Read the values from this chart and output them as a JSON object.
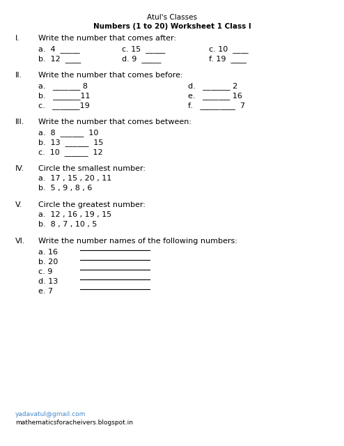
{
  "title": "Atul's Classes",
  "subtitle": "Numbers (1 to 20) Worksheet 1 Class I",
  "bg_color": "#ffffff",
  "text_color": "#000000",
  "link_color": "#4488cc",
  "footer_link": "yadavatul@gmail.com",
  "footer_text": "mathematicsforacheivers.blogspot.in",
  "section_I_roman": "I.",
  "section_I_instr": "Write the number that comes after:",
  "section_I_row1_col1": "a.  4  _____",
  "section_I_row1_col2": "c. 15  _____",
  "section_I_row1_col3": "c. 10  ____",
  "section_I_row2_col1": "b.  12  ____",
  "section_I_row2_col2": "d. 9  _____",
  "section_I_row2_col3": "f. 19  ____",
  "section_II_roman": "II.",
  "section_II_instr": "Write the number that comes before:",
  "section_II_a": "a.   _______ 8",
  "section_II_b": "b.   _______11",
  "section_II_c": "c.   _______19",
  "section_II_d": "d.   _______ 2",
  "section_II_e": "e.   _______ 16",
  "section_II_f": "f.   _________  7",
  "section_III_roman": "III.",
  "section_III_instr": "Write the number that comes between:",
  "section_III_a": "a.  8  ______  10",
  "section_III_b": "b.  13  ______  15",
  "section_III_c": "c.  10  ______  12",
  "section_IV_roman": "IV.",
  "section_IV_instr": "Circle the smallest number:",
  "section_IV_a": "a.  17 , 15 , 20 , 11",
  "section_IV_b": "b.  5 , 9 , 8 , 6",
  "section_V_roman": "V.",
  "section_V_instr": "Circle the greatest number:",
  "section_V_a": "a.  12 , 16 , 19 , 15",
  "section_V_b": "b.  8 , 7 , 10 , 5",
  "section_VI_roman": "VI.",
  "section_VI_instr": "Write the number names of the following numbers:",
  "section_VI_items": [
    "a. 16",
    "b. 20",
    "c. 9",
    "d. 13",
    "e. 7"
  ]
}
